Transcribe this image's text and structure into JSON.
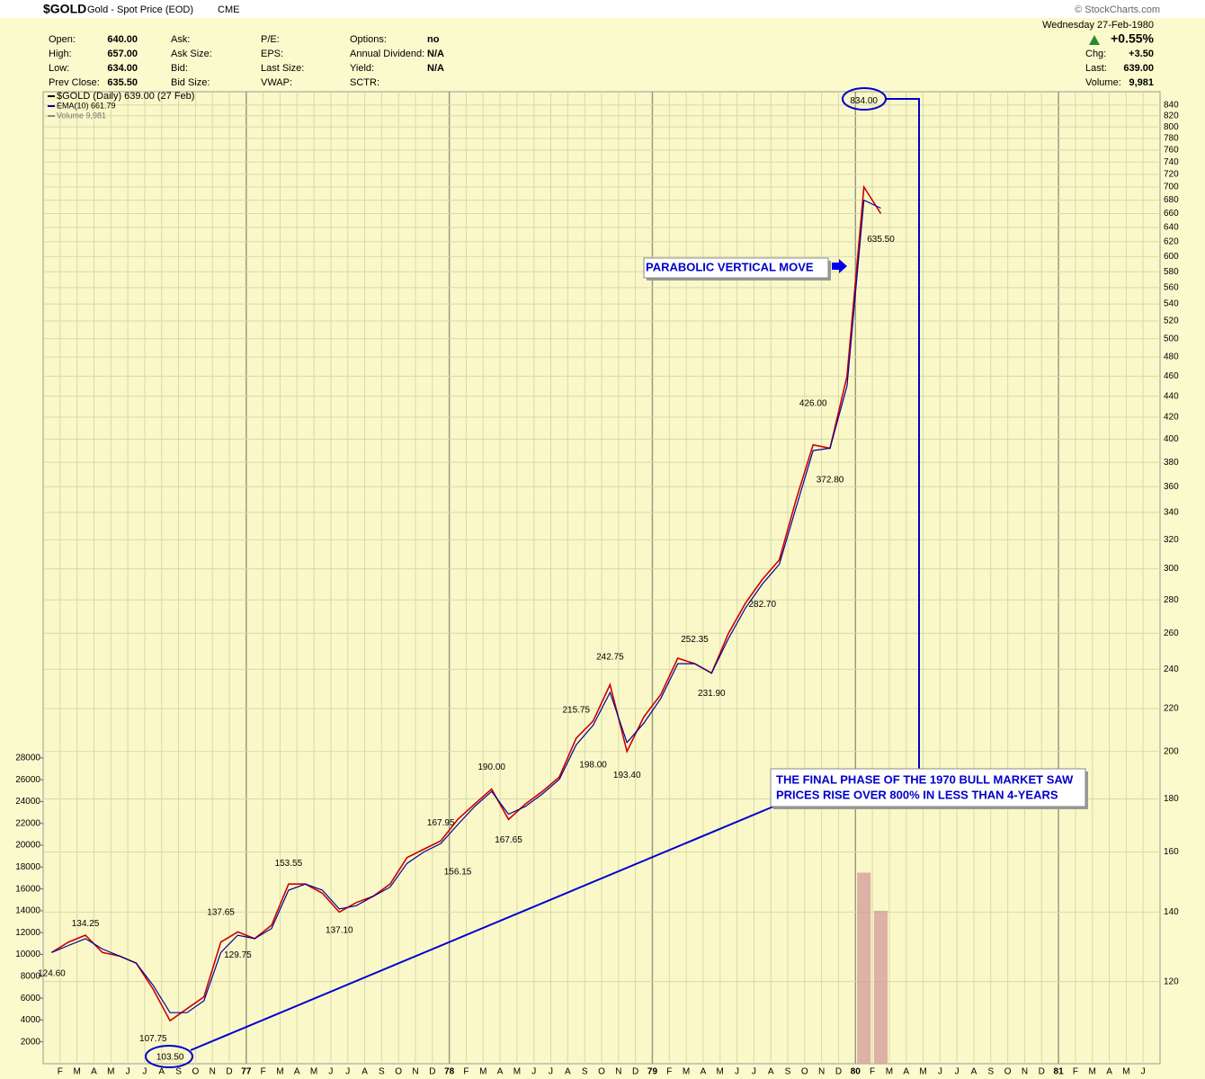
{
  "header": {
    "symbol": "$GOLD",
    "name": "Gold - Spot Price (EOD)",
    "exchange": "CME",
    "source": "© StockCharts.com",
    "date": "Wednesday  27-Feb-1980",
    "change_pct": "+0.55%",
    "columns": [
      [
        {
          "label": "Open:",
          "value": "640.00"
        },
        {
          "label": "High:",
          "value": "657.00"
        },
        {
          "label": "Low:",
          "value": "634.00"
        },
        {
          "label": "Prev Close:",
          "value": "635.50"
        }
      ],
      [
        {
          "label": "Ask:"
        },
        {
          "label": "Ask Size:"
        },
        {
          "label": "Bid:"
        },
        {
          "label": "Bid Size:"
        }
      ],
      [
        {
          "label": "P/E:"
        },
        {
          "label": "EPS:"
        },
        {
          "label": "Last Size:"
        },
        {
          "label": "VWAP:"
        }
      ],
      [
        {
          "label": "Options:",
          "value": "no"
        },
        {
          "label": "Annual Dividend:",
          "value": "N/A"
        },
        {
          "label": "Yield:",
          "value": "N/A"
        },
        {
          "label": "SCTR:"
        }
      ]
    ],
    "summary": [
      {
        "label": "Chg:",
        "value": "+3.50"
      },
      {
        "label": "Last:",
        "value": "639.00"
      },
      {
        "label": "Volume:",
        "value": "9,981"
      }
    ]
  },
  "chart_data": {
    "type": "line",
    "yscale": "log",
    "grid": true,
    "x": [
      "1976-01",
      "1976-02",
      "1976-03",
      "1976-04",
      "1976-05",
      "1976-06",
      "1976-07",
      "1976-08",
      "1976-09",
      "1976-10",
      "1976-11",
      "1976-12",
      "1977-01",
      "1977-02",
      "1977-03",
      "1977-04",
      "1977-05",
      "1977-06",
      "1977-07",
      "1977-08",
      "1977-09",
      "1977-10",
      "1977-11",
      "1977-12",
      "1978-01",
      "1978-02",
      "1978-03",
      "1978-04",
      "1978-05",
      "1978-06",
      "1978-07",
      "1978-08",
      "1978-09",
      "1978-10",
      "1978-11",
      "1978-12",
      "1979-01",
      "1979-02",
      "1979-03",
      "1979-04",
      "1979-05",
      "1979-06",
      "1979-07",
      "1979-08",
      "1979-09",
      "1979-10",
      "1979-11",
      "1979-12",
      "1980-01",
      "1980-02"
    ],
    "series": [
      {
        "name": "$GOLD (Daily) 639.00 (27 Feb)",
        "color": "#cc0000",
        "values": [
          128,
          131,
          133,
          128,
          127,
          125,
          118,
          110,
          113,
          116,
          131,
          134,
          132,
          136,
          149,
          149,
          146,
          140,
          143,
          145,
          149,
          158,
          161,
          164,
          172,
          178,
          184,
          172,
          178,
          183,
          189,
          206,
          214,
          232,
          200,
          216,
          227,
          246,
          243,
          238,
          260,
          278,
          293,
          306,
          350,
          395,
          392,
          460,
          700,
          660
        ]
      },
      {
        "name": "EMA(10) 661.79",
        "color": "#000099",
        "values": [
          128,
          130,
          132,
          129,
          127,
          125,
          119,
          112,
          112,
          115,
          128,
          133,
          132,
          135,
          147,
          149,
          147,
          141,
          142,
          145,
          148,
          156,
          160,
          163,
          170,
          177,
          183,
          174,
          177,
          182,
          188,
          203,
          212,
          228,
          204,
          213,
          225,
          243,
          243,
          238,
          257,
          275,
          290,
          303,
          344,
          390,
          392,
          450,
          680,
          668
        ]
      },
      {
        "name": "Volume 9,981",
        "color": "#d8a4a0",
        "axis": "y2",
        "values": [
          null,
          null,
          null,
          null,
          null,
          null,
          null,
          null,
          null,
          null,
          null,
          null,
          null,
          null,
          null,
          null,
          null,
          null,
          null,
          null,
          null,
          null,
          null,
          null,
          null,
          null,
          null,
          null,
          null,
          null,
          null,
          null,
          null,
          null,
          null,
          null,
          null,
          null,
          null,
          null,
          null,
          null,
          null,
          null,
          null,
          null,
          null,
          null,
          17500,
          14000
        ]
      }
    ],
    "annotations": [
      {
        "x": "1976-01",
        "value": 124.6,
        "label": "124.60"
      },
      {
        "x": "1976-03",
        "value": 134.25,
        "label": "134.25"
      },
      {
        "x": "1976-07",
        "value": 107.75,
        "label": "107.75"
      },
      {
        "x": "1976-08",
        "value": 103.5,
        "label": "103.50"
      },
      {
        "x": "1976-11",
        "value": 137.65,
        "label": "137.65"
      },
      {
        "x": "1976-12",
        "value": 129.75,
        "label": "129.75"
      },
      {
        "x": "1977-03",
        "value": 153.55,
        "label": "153.55"
      },
      {
        "x": "1977-06",
        "value": 137.1,
        "label": "137.10"
      },
      {
        "x": "1977-12",
        "value": 167.95,
        "label": "167.95"
      },
      {
        "x": "1978-01",
        "value": 156.15,
        "label": "156.15"
      },
      {
        "x": "1978-03",
        "value": 190,
        "label": "190.00"
      },
      {
        "x": "1978-04",
        "value": 167.65,
        "label": "167.65"
      },
      {
        "x": "1978-08",
        "value": 215.75,
        "label": "215.75"
      },
      {
        "x": "1978-09",
        "value": 198,
        "label": "198.00"
      },
      {
        "x": "1978-10",
        "value": 242.75,
        "label": "242.75"
      },
      {
        "x": "1978-11",
        "value": 193.4,
        "label": "193.40"
      },
      {
        "x": "1979-03",
        "value": 252.35,
        "label": "252.35"
      },
      {
        "x": "1979-04",
        "value": 231.9,
        "label": "231.90"
      },
      {
        "x": "1979-07",
        "value": 282.7,
        "label": "282.70"
      },
      {
        "x": "1979-10",
        "value": 426,
        "label": "426.00"
      },
      {
        "x": "1979-11",
        "value": 372.8,
        "label": "372.80"
      },
      {
        "x": "1980-01",
        "value": 834,
        "label": "834.00"
      },
      {
        "x": "1980-02",
        "value": 635.5,
        "label": "635.50"
      }
    ],
    "notes": [
      "PARABOLIC VERTICAL MOVE",
      "THE FINAL PHASE OF THE 1970 BULL MARKET SAW",
      "PRICES RISE OVER 800% IN LESS THAN 4-YEARS"
    ],
    "xlim": [
      "1976-01",
      "1981-07"
    ],
    "xticks": [
      {
        "value": "1976-02",
        "label": "F"
      },
      {
        "value": "1976-03",
        "label": "M"
      },
      {
        "value": "1976-04",
        "label": "A"
      },
      {
        "value": "1976-05",
        "label": "M"
      },
      {
        "value": "1976-06",
        "label": "J"
      },
      {
        "value": "1976-07",
        "label": "J"
      },
      {
        "value": "1976-08",
        "label": "A"
      },
      {
        "value": "1976-09",
        "label": "S"
      },
      {
        "value": "1976-10",
        "label": "O"
      },
      {
        "value": "1976-11",
        "label": "N"
      },
      {
        "value": "1976-12",
        "label": "D"
      },
      {
        "value": "1977-01",
        "label": "77"
      },
      {
        "value": "1977-02",
        "label": "F"
      },
      {
        "value": "1977-03",
        "label": "M"
      },
      {
        "value": "1977-04",
        "label": "A"
      },
      {
        "value": "1977-05",
        "label": "M"
      },
      {
        "value": "1977-06",
        "label": "J"
      },
      {
        "value": "1977-07",
        "label": "J"
      },
      {
        "value": "1977-08",
        "label": "A"
      },
      {
        "value": "1977-09",
        "label": "S"
      },
      {
        "value": "1977-10",
        "label": "O"
      },
      {
        "value": "1977-11",
        "label": "N"
      },
      {
        "value": "1977-12",
        "label": "D"
      },
      {
        "value": "1978-01",
        "label": "78"
      },
      {
        "value": "1978-02",
        "label": "F"
      },
      {
        "value": "1978-03",
        "label": "M"
      },
      {
        "value": "1978-04",
        "label": "A"
      },
      {
        "value": "1978-05",
        "label": "M"
      },
      {
        "value": "1978-06",
        "label": "J"
      },
      {
        "value": "1978-07",
        "label": "J"
      },
      {
        "value": "1978-08",
        "label": "A"
      },
      {
        "value": "1978-09",
        "label": "S"
      },
      {
        "value": "1978-10",
        "label": "O"
      },
      {
        "value": "1978-11",
        "label": "N"
      },
      {
        "value": "1978-12",
        "label": "D"
      },
      {
        "value": "1979-01",
        "label": "79"
      },
      {
        "value": "1979-02",
        "label": "F"
      },
      {
        "value": "1979-03",
        "label": "M"
      },
      {
        "value": "1979-04",
        "label": "A"
      },
      {
        "value": "1979-05",
        "label": "M"
      },
      {
        "value": "1979-06",
        "label": "J"
      },
      {
        "value": "1979-07",
        "label": "J"
      },
      {
        "value": "1979-08",
        "label": "A"
      },
      {
        "value": "1979-09",
        "label": "S"
      },
      {
        "value": "1979-10",
        "label": "O"
      },
      {
        "value": "1979-11",
        "label": "N"
      },
      {
        "value": "1979-12",
        "label": "D"
      },
      {
        "value": "1980-01",
        "label": "80"
      },
      {
        "value": "1980-02",
        "label": "F"
      },
      {
        "value": "1980-03",
        "label": "M"
      },
      {
        "value": "1980-04",
        "label": "A"
      },
      {
        "value": "1980-05",
        "label": "M"
      },
      {
        "value": "1980-06",
        "label": "J"
      },
      {
        "value": "1980-07",
        "label": "J"
      },
      {
        "value": "1980-08",
        "label": "A"
      },
      {
        "value": "1980-09",
        "label": "S"
      },
      {
        "value": "1980-10",
        "label": "O"
      },
      {
        "value": "1980-11",
        "label": "N"
      },
      {
        "value": "1980-12",
        "label": "D"
      },
      {
        "value": "1981-01",
        "label": "81"
      },
      {
        "value": "1981-02",
        "label": "F"
      },
      {
        "value": "1981-03",
        "label": "M"
      },
      {
        "value": "1981-04",
        "label": "A"
      },
      {
        "value": "1981-05",
        "label": "M"
      },
      {
        "value": "1981-06",
        "label": "J"
      }
    ],
    "ylim": [
      100,
      865
    ],
    "yticks": [
      120,
      140,
      160,
      180,
      200,
      220,
      240,
      260,
      280,
      300,
      320,
      340,
      360,
      380,
      400,
      420,
      440,
      460,
      480,
      500,
      520,
      540,
      560,
      580,
      600,
      620,
      640,
      660,
      680,
      700,
      720,
      740,
      760,
      780,
      800,
      820,
      840
    ],
    "y2lim": [
      0,
      89000
    ],
    "y2ticks": [
      2000,
      4000,
      6000,
      8000,
      10000,
      12000,
      14000,
      16000,
      18000,
      20000,
      22000,
      24000,
      26000,
      28000
    ]
  }
}
